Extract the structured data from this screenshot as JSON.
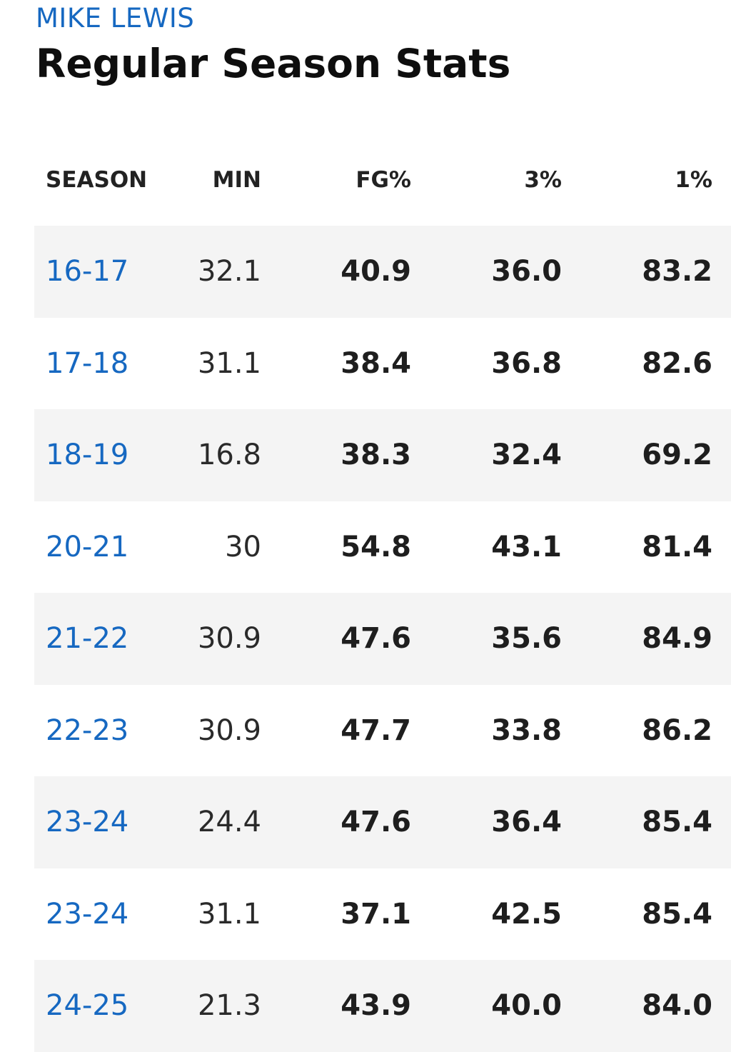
{
  "header": {
    "player_name": "MIKE LEWIS",
    "title": "Regular Season Stats"
  },
  "colors": {
    "accent": "#1668c1",
    "row_shade": "#f4f4f4",
    "text": "#1e1e1e"
  },
  "table": {
    "columns": [
      "SEASON",
      "MIN",
      "FG%",
      "3%",
      "1%"
    ],
    "rows": [
      {
        "season": "16-17",
        "min": "32.1",
        "fg": "40.9",
        "three": "36.0",
        "ft": "83.2"
      },
      {
        "season": "17-18",
        "min": "31.1",
        "fg": "38.4",
        "three": "36.8",
        "ft": "82.6"
      },
      {
        "season": "18-19",
        "min": "16.8",
        "fg": "38.3",
        "three": "32.4",
        "ft": "69.2"
      },
      {
        "season": "20-21",
        "min": "30",
        "fg": "54.8",
        "three": "43.1",
        "ft": "81.4"
      },
      {
        "season": "21-22",
        "min": "30.9",
        "fg": "47.6",
        "three": "35.6",
        "ft": "84.9"
      },
      {
        "season": "22-23",
        "min": "30.9",
        "fg": "47.7",
        "three": "33.8",
        "ft": "86.2"
      },
      {
        "season": "23-24",
        "min": "24.4",
        "fg": "47.6",
        "three": "36.4",
        "ft": "85.4"
      },
      {
        "season": "23-24",
        "min": "31.1",
        "fg": "37.1",
        "three": "42.5",
        "ft": "85.4"
      },
      {
        "season": "24-25",
        "min": "21.3",
        "fg": "43.9",
        "three": "40.0",
        "ft": "84.0"
      }
    ]
  }
}
